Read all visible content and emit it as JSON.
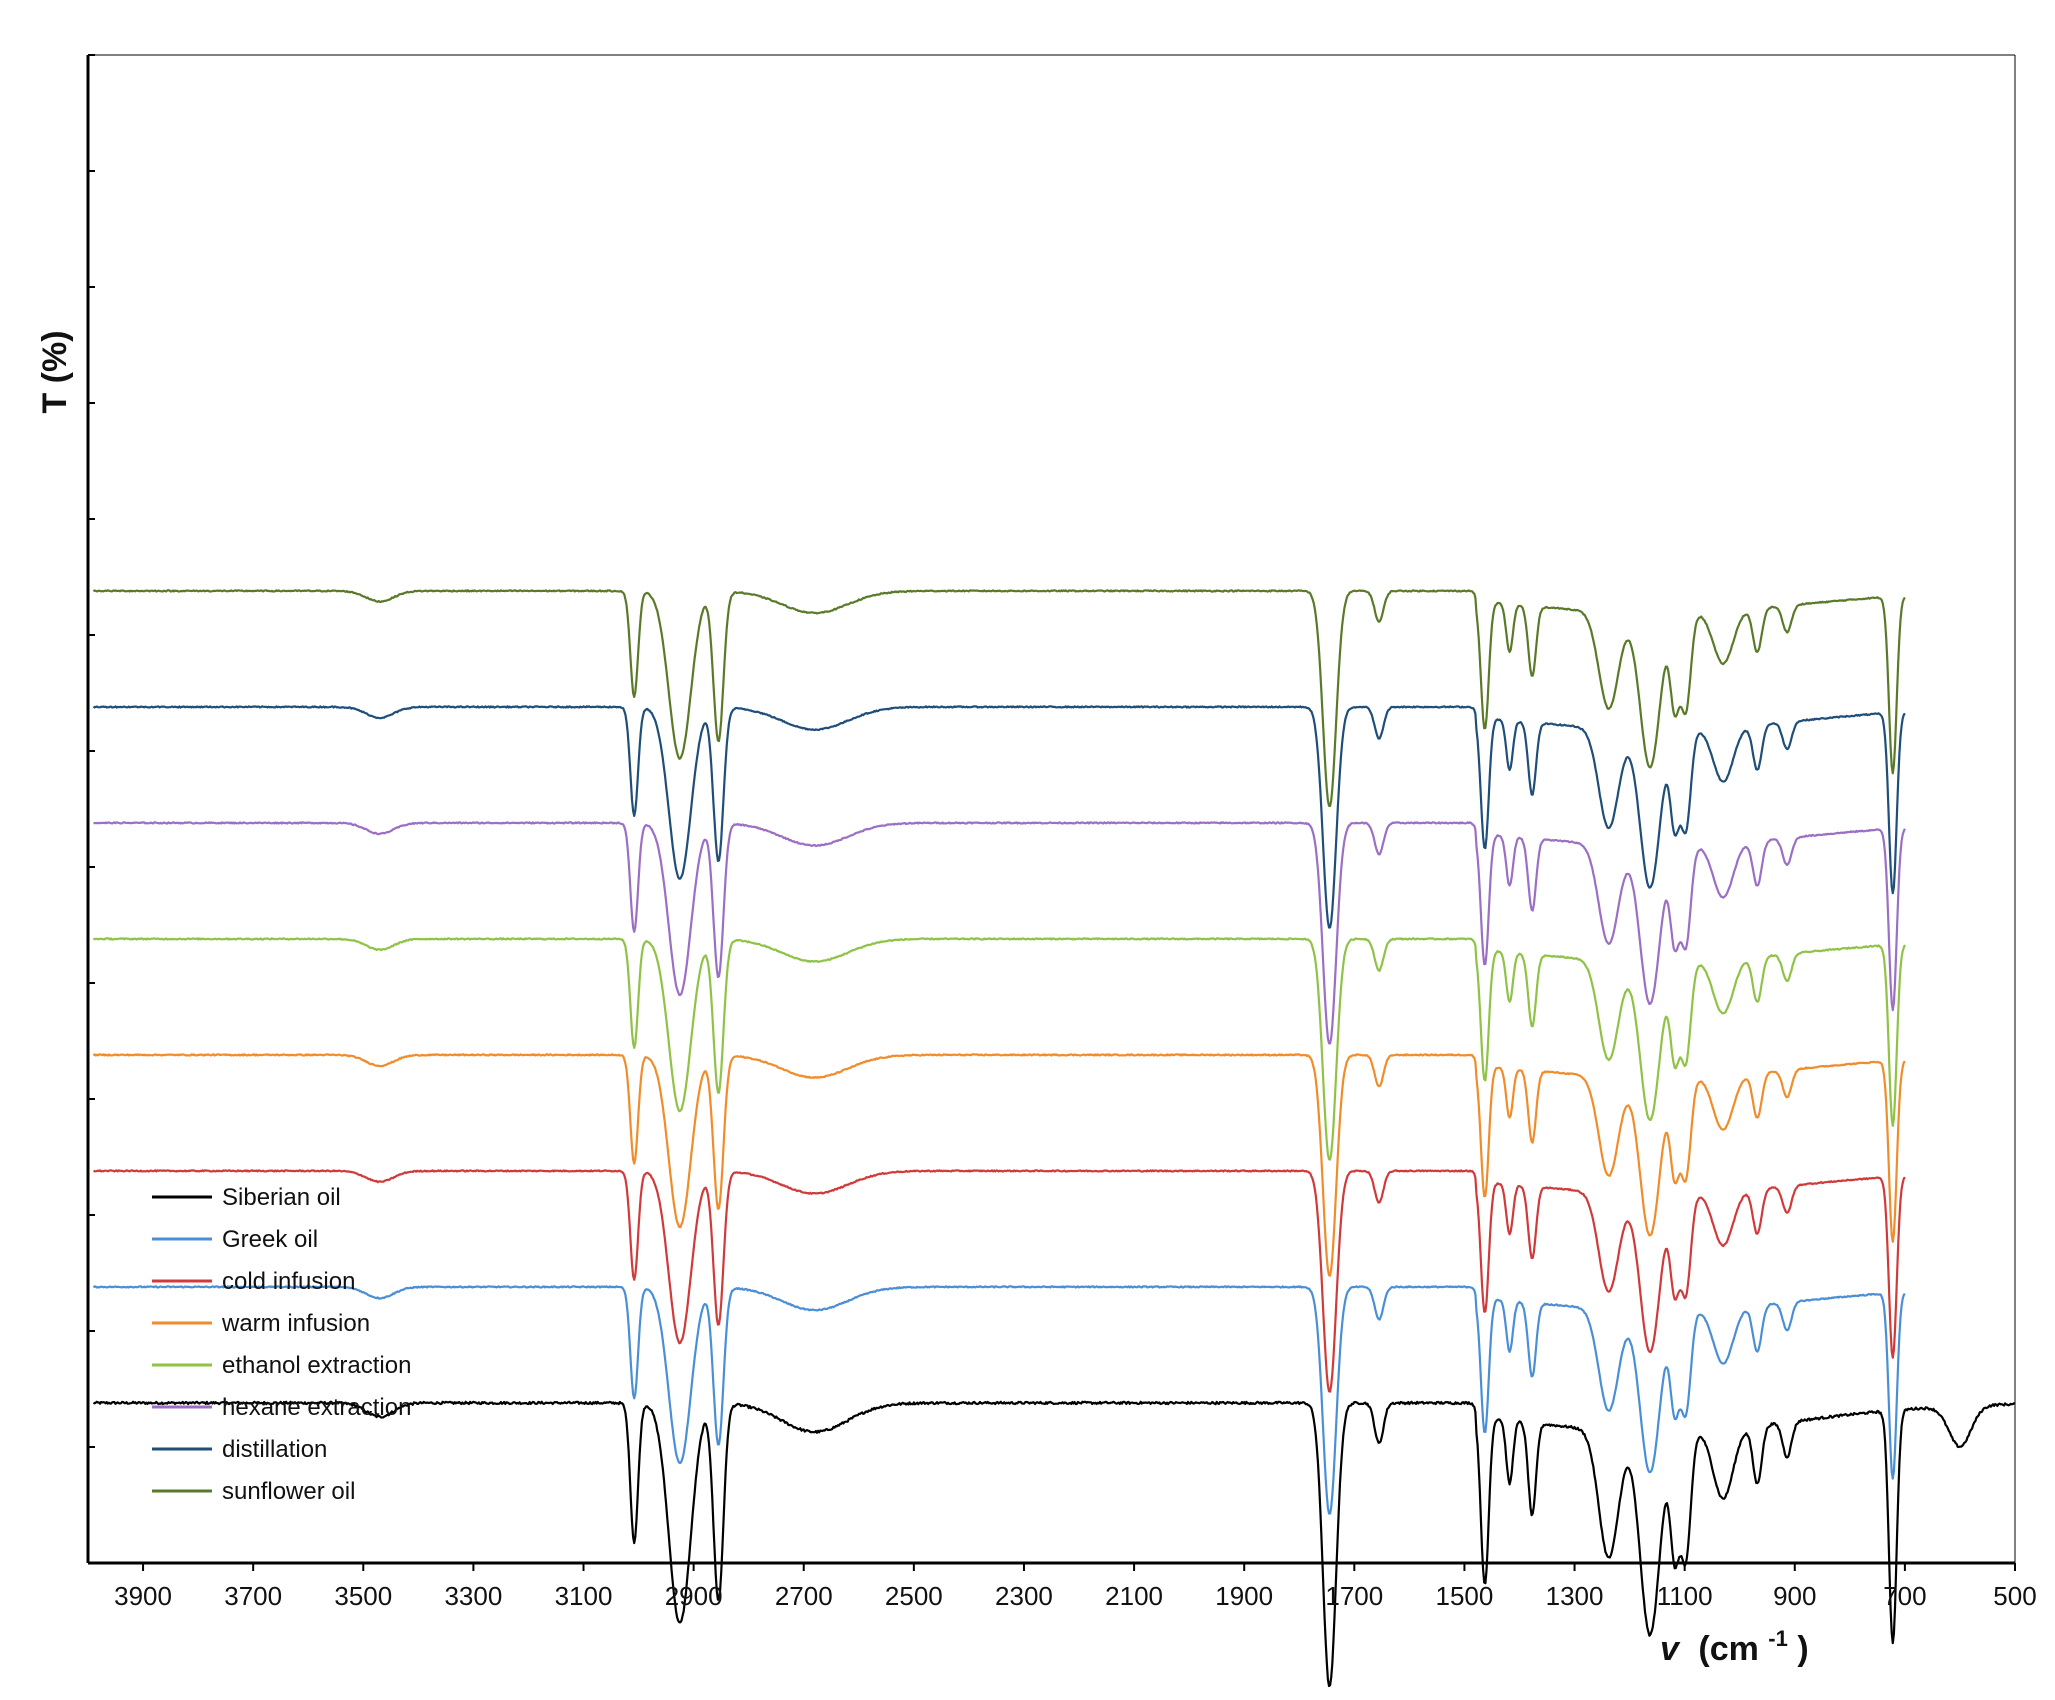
{
  "chart_data": {
    "type": "line",
    "title": "",
    "xlabel": "v (cm⁻¹)",
    "xlabel_symbol": "v",
    "xlabel_unit": "(cm",
    "xlabel_exp": "-1",
    "xlabel_close": ")",
    "ylabel": "T (%)",
    "xlim": [
      4000,
      500
    ],
    "x_reversed": true,
    "ylim": [
      0,
      13
    ],
    "grid": false,
    "legend_position": "bottom-left",
    "x_ticks": [
      3900,
      3700,
      3500,
      3300,
      3100,
      2900,
      2700,
      2500,
      2300,
      2100,
      1900,
      1700,
      1500,
      1300,
      1100,
      900,
      700,
      500
    ],
    "y_tick_count": 14,
    "y_tick_labels": "none",
    "offset_step": 1,
    "series": [
      {
        "name": "Siberian oil",
        "color": "#000000",
        "offset": 0,
        "depth": 1.0,
        "end": 500
      },
      {
        "name": "Greek oil",
        "color": "#4a8fd6",
        "offset": 1,
        "depth": 0.8,
        "end": 700
      },
      {
        "name": "cold infusion",
        "color": "#d03a3a",
        "offset": 2,
        "depth": 0.78,
        "end": 700
      },
      {
        "name": "warm infusion",
        "color": "#f08c2a",
        "offset": 3,
        "depth": 0.78,
        "end": 700
      },
      {
        "name": "ethanol extraction",
        "color": "#8fc246",
        "offset": 4,
        "depth": 0.78,
        "end": 700
      },
      {
        "name": "hexane extraction",
        "color": "#9b6fc4",
        "offset": 5,
        "depth": 0.78,
        "end": 700
      },
      {
        "name": "distillation",
        "color": "#1f4e79",
        "offset": 6,
        "depth": 0.78,
        "end": 700
      },
      {
        "name": "sunflower oil",
        "color": "#5a7a2a",
        "offset": 7,
        "depth": 0.76,
        "end": 700
      }
    ],
    "absorption_bands_cm1": [
      {
        "center": 3470,
        "width": 25,
        "depth": 0.12
      },
      {
        "center": 3008,
        "width": 7,
        "depth": 1.2
      },
      {
        "center": 2925,
        "width": 20,
        "depth": 1.9
      },
      {
        "center": 2855,
        "width": 9,
        "depth": 1.7
      },
      {
        "center": 2680,
        "width": 60,
        "depth": 0.25
      },
      {
        "center": 1745,
        "width": 12,
        "depth": 2.45
      },
      {
        "center": 1655,
        "width": 8,
        "depth": 0.35
      },
      {
        "center": 1463,
        "width": 7,
        "depth": 1.45
      },
      {
        "center": 1418,
        "width": 6,
        "depth": 0.55
      },
      {
        "center": 1377,
        "width": 7,
        "depth": 0.8
      },
      {
        "center": 1238,
        "width": 18,
        "depth": 1.1
      },
      {
        "center": 1163,
        "width": 18,
        "depth": 1.75
      },
      {
        "center": 1118,
        "width": 8,
        "depth": 1.0
      },
      {
        "center": 1098,
        "width": 9,
        "depth": 1.1
      },
      {
        "center": 1030,
        "width": 18,
        "depth": 0.6
      },
      {
        "center": 968,
        "width": 8,
        "depth": 0.5
      },
      {
        "center": 914,
        "width": 8,
        "depth": 0.3
      },
      {
        "center": 722,
        "width": 7,
        "depth": 2.0
      },
      {
        "center": 600,
        "width": 20,
        "depth": 0.35
      }
    ]
  }
}
